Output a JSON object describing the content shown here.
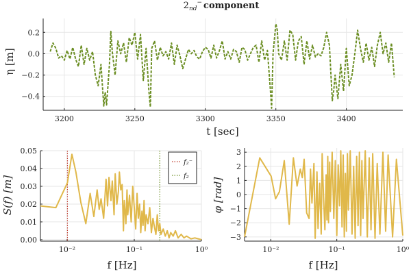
{
  "figure_title": "2_{nd}^{-} component",
  "chart_data": [
    {
      "type": "line",
      "title": "2_{nd}^{-} component",
      "xlabel": "t [sec]",
      "ylabel": "η [m]",
      "xlim": [
        3185,
        3440
      ],
      "ylim": [
        -0.53,
        0.33
      ],
      "xticks": [
        3200,
        3250,
        3300,
        3350,
        3400
      ],
      "yticks": [
        -0.4,
        -0.2,
        0.0,
        0.2
      ],
      "ytick_labels": [
        "−0.4",
        "−0.2",
        "0.0",
        "0.2"
      ],
      "grid": true,
      "line_style": "dashed",
      "color": "#6b8e23",
      "series": [
        {
          "x": [
            3190,
            3192,
            3194,
            3196,
            3198,
            3200,
            3202,
            3204,
            3206,
            3208,
            3210,
            3212,
            3214,
            3216,
            3218,
            3220,
            3222,
            3224,
            3226,
            3228,
            3229,
            3230,
            3232,
            3233,
            3234,
            3236,
            3238,
            3240,
            3242,
            3244,
            3246,
            3248,
            3250,
            3252,
            3254,
            3256,
            3258,
            3260,
            3261,
            3262,
            3264,
            3266,
            3268,
            3270,
            3272,
            3274,
            3276,
            3278,
            3280,
            3282,
            3284,
            3286,
            3288,
            3290,
            3292,
            3294,
            3296,
            3298,
            3300,
            3302,
            3304,
            3306,
            3308,
            3310,
            3312,
            3314,
            3316,
            3318,
            3320,
            3322,
            3324,
            3326,
            3328,
            3330,
            3332,
            3334,
            3336,
            3338,
            3340,
            3342,
            3344,
            3346,
            3347,
            3348,
            3350,
            3351,
            3352,
            3354,
            3356,
            3358,
            3360,
            3362,
            3364,
            3366,
            3368,
            3370,
            3372,
            3374,
            3376,
            3378,
            3380,
            3382,
            3384,
            3386,
            3388,
            3390,
            3391,
            3392,
            3394,
            3396,
            3398,
            3400,
            3402,
            3404,
            3406,
            3408,
            3410,
            3412,
            3414,
            3416,
            3418,
            3420,
            3422,
            3424,
            3426,
            3428,
            3430,
            3432,
            3434
          ],
          "y": [
            0.02,
            0.1,
            0.05,
            -0.04,
            -0.02,
            -0.06,
            0.03,
            -0.05,
            0.06,
            -0.05,
            -0.12,
            0.08,
            -0.1,
            0.05,
            -0.06,
            0.02,
            -0.2,
            -0.3,
            -0.1,
            -0.49,
            -0.36,
            -0.48,
            -0.1,
            0.21,
            0.02,
            -0.2,
            0.12,
            0.0,
            0.1,
            -0.08,
            0.15,
            0.08,
            0.2,
            -0.05,
            0.18,
            -0.25,
            0.05,
            -0.35,
            -0.5,
            0.05,
            0.12,
            -0.06,
            0.06,
            -0.02,
            0.02,
            -0.05,
            0.1,
            -0.1,
            0.08,
            -0.02,
            -0.14,
            -0.05,
            0.04,
            0.0,
            0.03,
            -0.03,
            -0.05,
            0.02,
            0.06,
            0.04,
            -0.04,
            0.08,
            -0.04,
            0.03,
            0.12,
            -0.05,
            0.02,
            -0.05,
            0.04,
            0.02,
            -0.08,
            0.06,
            0.04,
            -0.06,
            0.0,
            0.06,
            0.08,
            -0.08,
            0.12,
            -0.06,
            0.03,
            -0.32,
            -0.51,
            0.0,
            0.28,
            0.22,
            0.0,
            -0.06,
            0.12,
            -0.06,
            0.22,
            0.18,
            -0.06,
            0.12,
            0.16,
            -0.1,
            0.12,
            -0.05,
            0.08,
            -0.03,
            0.0,
            -0.02,
            0.06,
            0.2,
            0.08,
            -0.44,
            -0.35,
            -0.2,
            -0.42,
            -0.1,
            -0.35,
            0.05,
            -0.3,
            -0.2,
            0.0,
            0.22,
            0.05,
            -0.08,
            0.1,
            -0.06,
            0.06,
            -0.12,
            0.08,
            0.2,
            0.0,
            0.1,
            -0.08,
            0.1,
            -0.22
          ]
        }
      ]
    },
    {
      "type": "line",
      "xlabel": "f [Hz]",
      "ylabel": "S(f) [m]",
      "xscale": "log",
      "xlim": [
        0.004,
        1.0
      ],
      "ylim": [
        -0.0008,
        0.05
      ],
      "xticks": [
        0.01,
        0.1,
        1
      ],
      "xtick_labels": [
        "10⁻²",
        "10⁻¹",
        "10⁰"
      ],
      "yticks": [
        0.0,
        0.01,
        0.02,
        0.03,
        0.04,
        0.05
      ],
      "ytick_labels": [
        "0.00",
        "0.01",
        "0.02",
        "0.03",
        "0.04",
        "0.05"
      ],
      "grid": true,
      "color": "#e0b84a",
      "legend_position": "top-right",
      "vlines": [
        {
          "x": 0.0101,
          "label": "f₂⁻",
          "color": "#c0392b"
        },
        {
          "x": 0.24,
          "label": "f₂",
          "color": "#6b8e23"
        }
      ],
      "series": [
        {
          "x": [
            0.004,
            0.0068,
            0.0101,
            0.0118,
            0.0135,
            0.016,
            0.019,
            0.022,
            0.025,
            0.028,
            0.03,
            0.032,
            0.035,
            0.038,
            0.04,
            0.042,
            0.045,
            0.047,
            0.05,
            0.052,
            0.055,
            0.058,
            0.06,
            0.063,
            0.066,
            0.069,
            0.071,
            0.073,
            0.075,
            0.078,
            0.08,
            0.085,
            0.09,
            0.095,
            0.1,
            0.105,
            0.11,
            0.115,
            0.12,
            0.125,
            0.13,
            0.135,
            0.14,
            0.145,
            0.15,
            0.16,
            0.17,
            0.18,
            0.19,
            0.2,
            0.21,
            0.22,
            0.23,
            0.24,
            0.25,
            0.27,
            0.29,
            0.31,
            0.33,
            0.35,
            0.38,
            0.41,
            0.45,
            0.5,
            0.55,
            0.6,
            0.7,
            0.8,
            1.0
          ],
          "y": [
            0.019,
            0.018,
            0.032,
            0.048,
            0.038,
            0.021,
            0.009,
            0.026,
            0.013,
            0.028,
            0.017,
            0.023,
            0.012,
            0.034,
            0.019,
            0.035,
            0.022,
            0.033,
            0.014,
            0.037,
            0.02,
            0.027,
            0.038,
            0.028,
            0.031,
            0.005,
            0.022,
            0.016,
            0.009,
            0.028,
            0.014,
            0.025,
            0.01,
            0.03,
            0.018,
            0.006,
            0.026,
            0.012,
            0.02,
            0.004,
            0.016,
            0.008,
            0.022,
            0.005,
            0.014,
            0.009,
            0.018,
            0.004,
            0.012,
            0.007,
            0.003,
            0.014,
            0.005,
            0.009,
            0.003,
            0.006,
            0.002,
            0.005,
            0.001,
            0.004,
            0.002,
            0.005,
            0.001,
            0.003,
            0.001,
            0.002,
            0.0005,
            0.001,
            0.0
          ]
        }
      ]
    },
    {
      "type": "line",
      "xlabel": "f [Hz]",
      "ylabel": "φ [rad]",
      "xscale": "log",
      "xlim": [
        0.004,
        1.0
      ],
      "ylim": [
        -3.3,
        3.3
      ],
      "xticks": [
        0.01,
        0.1,
        1
      ],
      "xtick_labels": [
        "10⁻²",
        "10⁻¹",
        "10⁰"
      ],
      "yticks": [
        -3,
        -2,
        -1,
        0,
        1,
        2,
        3
      ],
      "ytick_labels": [
        "−3",
        "−2",
        "−1",
        "0",
        "1",
        "2",
        "3"
      ],
      "grid": true,
      "color": "#e0b84a",
      "series": [
        {
          "x": [
            0.004,
            0.0068,
            0.0101,
            0.0118,
            0.0135,
            0.016,
            0.019,
            0.022,
            0.025,
            0.028,
            0.03,
            0.032,
            0.035,
            0.038,
            0.04,
            0.042,
            0.045,
            0.047,
            0.05,
            0.052,
            0.055,
            0.058,
            0.06,
            0.063,
            0.066,
            0.069,
            0.071,
            0.073,
            0.075,
            0.078,
            0.08,
            0.085,
            0.09,
            0.095,
            0.1,
            0.105,
            0.11,
            0.115,
            0.12,
            0.125,
            0.13,
            0.135,
            0.14,
            0.145,
            0.15,
            0.16,
            0.17,
            0.18,
            0.19,
            0.2,
            0.21,
            0.22,
            0.23,
            0.24,
            0.25,
            0.27,
            0.29,
            0.31,
            0.33,
            0.35,
            0.38,
            0.41,
            0.45,
            0.5,
            0.55,
            0.6,
            0.7,
            0.8,
            1.0
          ],
          "y": [
            -3.0,
            2.6,
            1.3,
            -0.3,
            0.2,
            2.4,
            -2.1,
            2.6,
            0.6,
            1.8,
            1.2,
            2.5,
            -1.3,
            -1.7,
            1.8,
            -0.6,
            2.2,
            -3.1,
            1.6,
            -2.4,
            0.8,
            -2.8,
            2.9,
            -0.2,
            -2.5,
            1.4,
            -1.8,
            2.7,
            -2.0,
            2.3,
            -1.2,
            3.0,
            -1.7,
            2.4,
            -2.9,
            2.1,
            -0.8,
            3.1,
            -2.3,
            2.8,
            -3.0,
            1.5,
            -2.6,
            2.9,
            -1.1,
            3.1,
            -2.8,
            2.0,
            -3.1,
            2.7,
            -2.2,
            3.0,
            -2.9,
            2.4,
            -1.7,
            3.1,
            -3.0,
            2.6,
            -2.5,
            2.9,
            -3.1,
            2.2,
            -2.8,
            3.0,
            -2.6,
            2.8,
            -3.0,
            2.5,
            -2.9
          ]
        }
      ]
    }
  ]
}
